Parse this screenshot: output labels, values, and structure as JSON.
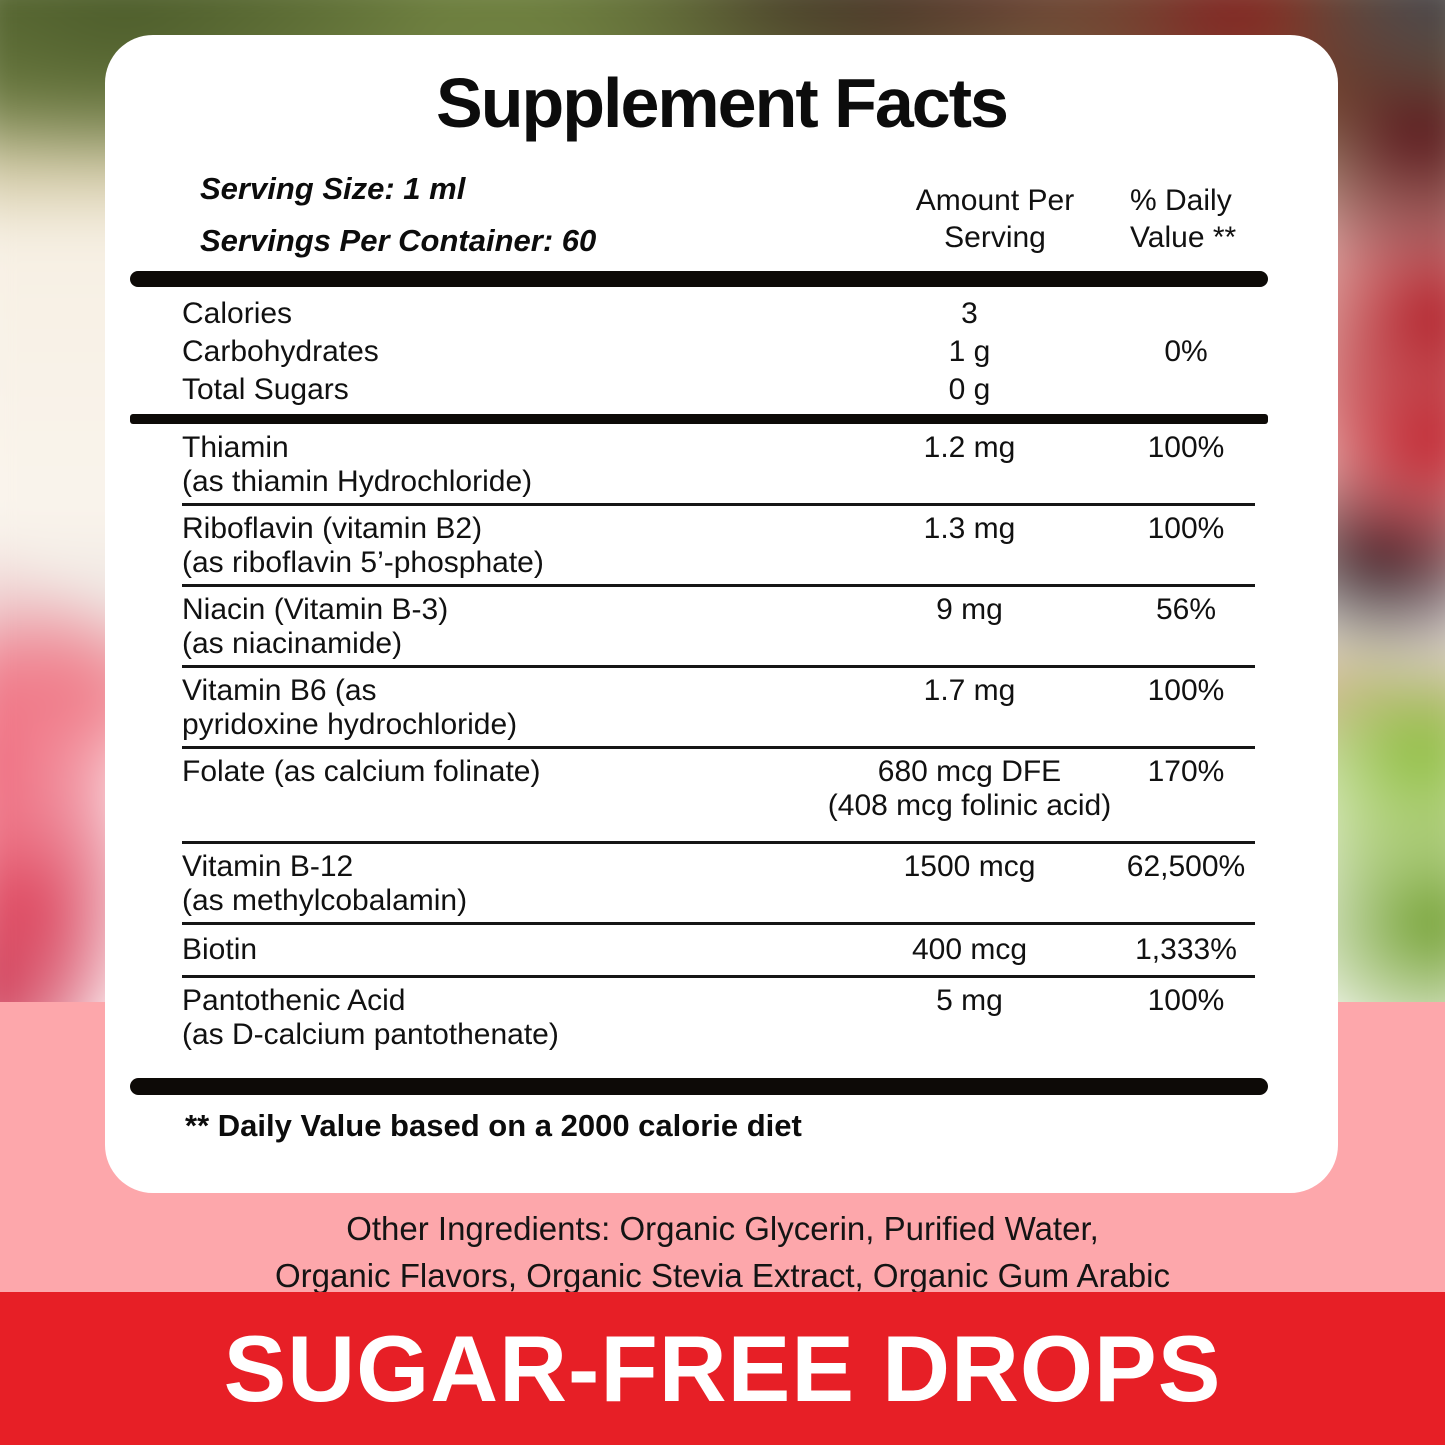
{
  "panel": {
    "title": "Supplement Facts",
    "serving_size": "Serving Size: 1 ml",
    "servings_per_container": "Servings Per Container: 60",
    "columns": {
      "amount_line1": "Amount Per",
      "amount_line2": "Serving",
      "dv_line1": "% Daily",
      "dv_line2": "Value **"
    },
    "calorie_rows": [
      {
        "name": "Calories",
        "amount": "3",
        "dv": ""
      },
      {
        "name": "Carbohydrates",
        "amount": "1 g",
        "dv": "0%"
      },
      {
        "name": "Total Sugars",
        "amount": "0 g",
        "dv": ""
      }
    ],
    "nutrient_rows": [
      {
        "name": "Thiamin",
        "sub": "(as thiamin Hydrochloride)",
        "amount": "1.2 mg",
        "amount_sub": "",
        "dv": "100%"
      },
      {
        "name": "Riboflavin (vitamin B2)",
        "sub": "(as riboflavin 5’-phosphate)",
        "amount": "1.3 mg",
        "amount_sub": "",
        "dv": "100%"
      },
      {
        "name": "Niacin (Vitamin B-3)",
        "sub": "(as niacinamide)",
        "amount": "9 mg",
        "amount_sub": "",
        "dv": "56%"
      },
      {
        "name": "Vitamin B6 (as",
        "sub": "pyridoxine hydrochloride)",
        "amount": "1.7 mg",
        "amount_sub": "",
        "dv": "100%"
      },
      {
        "name": "Folate (as calcium folinate)",
        "sub": "",
        "amount": "680 mcg DFE",
        "amount_sub": "(408 mcg folinic acid)",
        "dv": "170%"
      },
      {
        "name": "Vitamin B-12",
        "sub": "(as methylcobalamin)",
        "amount": "1500 mcg",
        "amount_sub": "",
        "dv": "62,500%"
      },
      {
        "name": "Biotin",
        "sub": "",
        "amount": "400 mcg",
        "amount_sub": "",
        "dv": "1,333%"
      },
      {
        "name": "Pantothenic Acid",
        "sub": "(as D-calcium pantothenate)",
        "amount": "5 mg",
        "amount_sub": "",
        "dv": "100%"
      }
    ],
    "footnote": "** Daily Value based on a 2000 calorie diet"
  },
  "other_ingredients": {
    "line1": "Other Ingredients: Organic Glycerin, Purified Water,",
    "line2": "Organic Flavors, Organic Stevia Extract, Organic Gum Arabic"
  },
  "banner": {
    "text": "SUGAR-FREE DROPS"
  },
  "colors": {
    "pink_band": "#fda7ab",
    "banner_red": "#e71f26",
    "panel_white": "#ffffff",
    "text_black": "#111111"
  }
}
